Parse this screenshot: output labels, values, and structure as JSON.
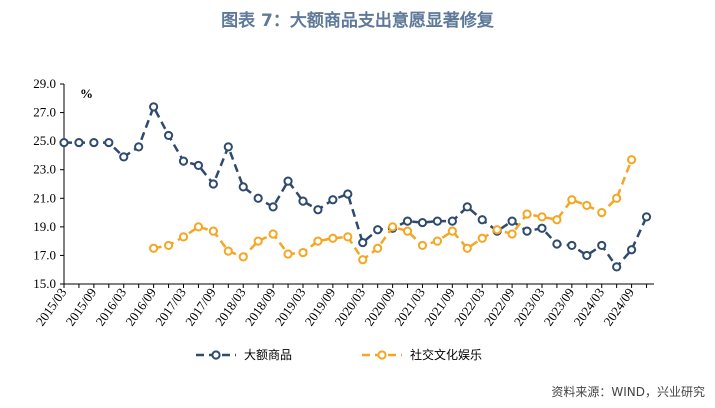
{
  "title": "图表 7：大额商品支出意愿显著修复",
  "source": "资料来源：WIND，兴业研究",
  "chart_data": {
    "type": "line",
    "unit": "%",
    "ylim": [
      15.0,
      29.0
    ],
    "yticks": [
      "29.0",
      "27.0",
      "25.0",
      "23.0",
      "21.0",
      "19.0",
      "17.0",
      "15.0"
    ],
    "x": [
      "2015/03",
      "2015/06",
      "2015/09",
      "2015/12",
      "2016/03",
      "2016/06",
      "2016/09",
      "2016/12",
      "2017/03",
      "2017/06",
      "2017/09",
      "2017/12",
      "2018/03",
      "2018/06",
      "2018/09",
      "2018/12",
      "2019/03",
      "2019/06",
      "2019/09",
      "2019/12",
      "2020/03",
      "2020/06",
      "2020/09",
      "2020/12",
      "2021/03",
      "2021/06",
      "2021/09",
      "2021/12",
      "2022/03",
      "2022/06",
      "2022/09",
      "2022/12",
      "2023/03",
      "2023/06",
      "2023/09",
      "2023/12",
      "2024/03",
      "2024/06",
      "2024/09",
      "2024/12"
    ],
    "xtick_labels": [
      "2015/03",
      "2015/09",
      "2016/03",
      "2016/09",
      "2017/03",
      "2017/09",
      "2018/03",
      "2018/09",
      "2019/03",
      "2019/09",
      "2020/03",
      "2020/09",
      "2021/03",
      "2021/09",
      "2022/03",
      "2022/09",
      "2023/03",
      "2023/09",
      "2024/03",
      "2024/09"
    ],
    "grid": false,
    "legend_position": "bottom",
    "series": [
      {
        "name": "大额商品",
        "color": "#2e4a6e",
        "values": [
          24.9,
          24.9,
          24.9,
          24.9,
          23.9,
          24.6,
          27.4,
          25.4,
          23.6,
          23.3,
          22.0,
          24.6,
          21.8,
          21.0,
          20.4,
          22.2,
          20.8,
          20.2,
          20.9,
          21.3,
          17.9,
          18.8,
          18.9,
          19.4,
          19.3,
          19.4,
          19.4,
          20.4,
          19.5,
          18.7,
          19.4,
          18.7,
          18.9,
          17.8,
          17.7,
          17.0,
          17.7,
          16.2,
          17.4,
          19.7
        ]
      },
      {
        "name": "社交文化娱乐",
        "color": "#f5a623",
        "values": [
          null,
          null,
          null,
          null,
          null,
          null,
          17.5,
          17.7,
          18.3,
          19.0,
          18.7,
          17.3,
          16.9,
          18.0,
          18.5,
          17.1,
          17.2,
          18.0,
          18.2,
          18.3,
          16.7,
          17.5,
          19.0,
          18.7,
          17.7,
          18.0,
          18.7,
          17.5,
          18.2,
          18.8,
          18.5,
          19.9,
          19.7,
          19.5,
          20.9,
          20.5,
          20.0,
          21.0,
          23.7,
          null
        ]
      }
    ]
  }
}
